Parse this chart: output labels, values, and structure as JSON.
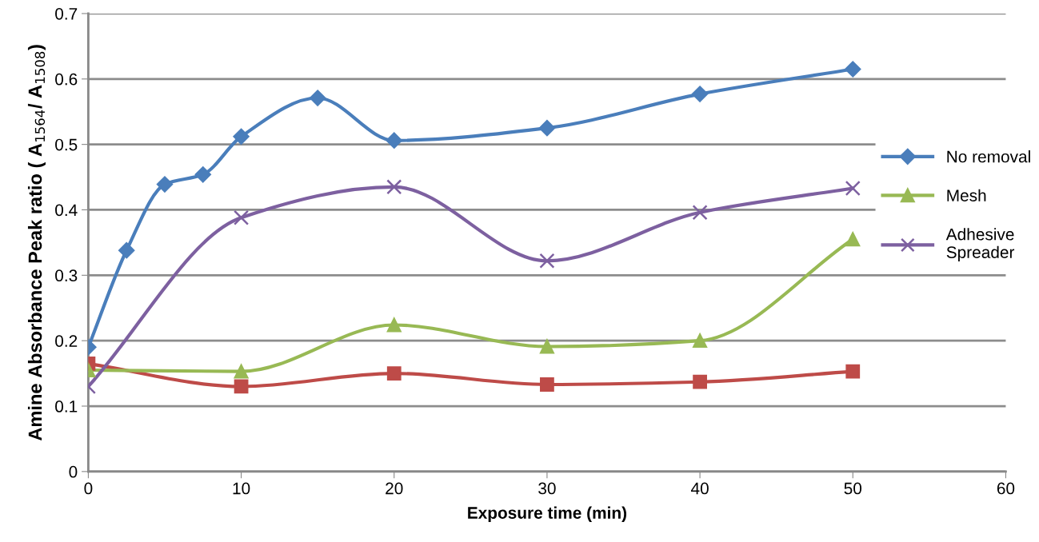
{
  "chart_data": {
    "type": "line",
    "xlabel": "Exposure time (min)",
    "ylabel": "Amine Absorbance Peak ratio ( A$_{1564}$/ A$_{1508}$)",
    "xlim": [
      0,
      60
    ],
    "xticks": [
      0,
      10,
      20,
      30,
      40,
      50,
      60
    ],
    "ylim": [
      0,
      0.7
    ],
    "yticks": [
      0,
      0.1,
      0.2,
      0.3,
      0.4,
      0.5,
      0.6,
      0.7
    ],
    "grid": "y",
    "legend": "right",
    "line_style": "solid",
    "series": [
      {
        "name": "No removal",
        "color": "#4a7ebb",
        "marker": "diamond",
        "x": [
          0,
          2.5,
          5,
          7.5,
          10,
          15,
          20,
          30,
          40,
          50
        ],
        "values": [
          0.19,
          0.338,
          0.439,
          0.454,
          0.512,
          0.571,
          0.506,
          0.525,
          0.577,
          0.615
        ]
      },
      {
        "color": "#be4b48",
        "marker": "square",
        "x": [
          0,
          10,
          20,
          30,
          40,
          50
        ],
        "values": [
          0.165,
          0.13,
          0.15,
          0.133,
          0.137,
          0.153
        ]
      },
      {
        "name": "Mesh",
        "color": "#98b954",
        "marker": "triangle",
        "x": [
          0,
          10,
          20,
          30,
          40,
          50
        ],
        "values": [
          0.155,
          0.153,
          0.224,
          0.191,
          0.2,
          0.355
        ]
      },
      {
        "name": "Adhesive\nSpreader",
        "color": "#7d60a0",
        "marker": "cross",
        "x": [
          0,
          10,
          20,
          30,
          40,
          50
        ],
        "values": [
          0.13,
          0.388,
          0.435,
          0.322,
          0.396,
          0.433
        ]
      }
    ]
  }
}
